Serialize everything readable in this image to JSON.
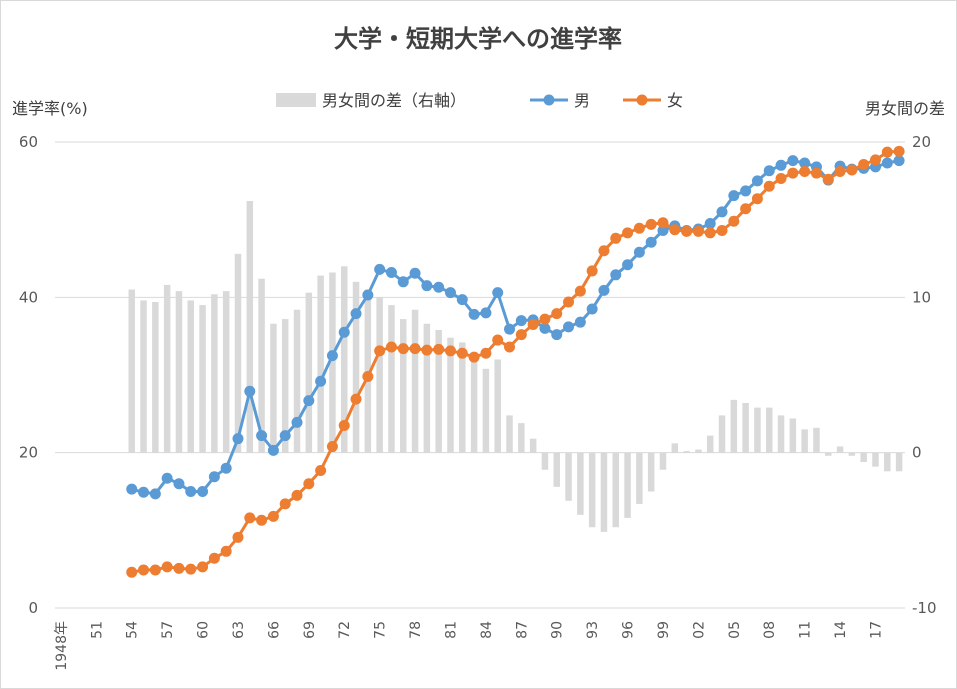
{
  "chart_data": {
    "type": "bar+line",
    "title": "大学・短期大学への進学率",
    "y_left_label": "進学率(%)",
    "y_right_label": "男女間の差",
    "y_left_range": [
      0,
      60
    ],
    "y_right_range": [
      -10,
      20
    ],
    "y_left_ticks": [
      "0",
      "20",
      "40",
      "60"
    ],
    "y_right_ticks": [
      "-10",
      "0",
      "10",
      "20"
    ],
    "x_range": [
      1948,
      2019
    ],
    "x_tick_labels": [
      {
        "year": 1948,
        "label": "1948年"
      },
      {
        "year": 1951,
        "label": "51"
      },
      {
        "year": 1954,
        "label": "54"
      },
      {
        "year": 1957,
        "label": "57"
      },
      {
        "year": 1960,
        "label": "60"
      },
      {
        "year": 1963,
        "label": "63"
      },
      {
        "year": 1966,
        "label": "66"
      },
      {
        "year": 1969,
        "label": "69"
      },
      {
        "year": 1972,
        "label": "72"
      },
      {
        "year": 1975,
        "label": "75"
      },
      {
        "year": 1978,
        "label": "78"
      },
      {
        "year": 1981,
        "label": "81"
      },
      {
        "year": 1984,
        "label": "84"
      },
      {
        "year": 1987,
        "label": "87"
      },
      {
        "year": 1990,
        "label": "90"
      },
      {
        "year": 1993,
        "label": "93"
      },
      {
        "year": 1996,
        "label": "96"
      },
      {
        "year": 1999,
        "label": "99"
      },
      {
        "year": 2002,
        "label": "02"
      },
      {
        "year": 2005,
        "label": "05"
      },
      {
        "year": 2008,
        "label": "08"
      },
      {
        "year": 2011,
        "label": "11"
      },
      {
        "year": 2014,
        "label": "14"
      },
      {
        "year": 2017,
        "label": "17"
      }
    ],
    "grid": true,
    "legend": {
      "placement": "top"
    },
    "years": [
      1954,
      1955,
      1956,
      1957,
      1958,
      1959,
      1960,
      1961,
      1962,
      1963,
      1964,
      1965,
      1966,
      1967,
      1968,
      1969,
      1970,
      1971,
      1972,
      1973,
      1974,
      1975,
      1976,
      1977,
      1978,
      1979,
      1980,
      1981,
      1982,
      1983,
      1984,
      1985,
      1986,
      1987,
      1988,
      1989,
      1990,
      1991,
      1992,
      1993,
      1994,
      1995,
      1996,
      1997,
      1998,
      1999,
      2000,
      2001,
      2002,
      2003,
      2004,
      2005,
      2006,
      2007,
      2008,
      2009,
      2010,
      2011,
      2012,
      2013,
      2014,
      2015,
      2016,
      2017,
      2018,
      2019
    ],
    "series": [
      {
        "name": "男女間の差（右軸）",
        "kind": "bar",
        "axis": "right",
        "color": "#d9d9d9",
        "values": [
          10.5,
          9.8,
          9.7,
          10.8,
          10.4,
          9.8,
          9.5,
          10.2,
          10.4,
          12.8,
          16.2,
          11.2,
          8.3,
          8.6,
          9.2,
          10.3,
          11.4,
          11.6,
          12.0,
          11.0,
          10.5,
          10.0,
          9.5,
          8.6,
          9.2,
          8.3,
          7.9,
          7.4,
          7.1,
          6.4,
          5.4,
          6.0,
          2.4,
          1.9,
          0.9,
          -1.1,
          -2.2,
          -3.1,
          -4.0,
          -4.8,
          -5.1,
          -4.8,
          -4.2,
          -3.3,
          -2.5,
          -1.1,
          0.6,
          0.1,
          0.2,
          1.1,
          2.4,
          3.4,
          3.2,
          2.9,
          2.9,
          2.4,
          2.2,
          1.5,
          1.6,
          -0.2,
          0.4,
          -0.2,
          -0.6,
          -0.9,
          -1.2,
          -1.2
        ]
      },
      {
        "name": "男",
        "kind": "line",
        "axis": "left",
        "color": "#5b9bd5",
        "values": [
          15.3,
          14.9,
          14.7,
          16.7,
          16.0,
          15.0,
          15.0,
          16.9,
          18.0,
          21.8,
          27.9,
          22.2,
          20.3,
          22.2,
          23.9,
          26.7,
          29.2,
          32.5,
          35.5,
          37.9,
          40.3,
          43.6,
          43.2,
          42.0,
          43.1,
          41.5,
          41.3,
          40.6,
          39.7,
          37.8,
          38.0,
          40.6,
          35.9,
          37.0,
          37.1,
          36.0,
          35.2,
          36.2,
          36.8,
          38.5,
          40.9,
          42.9,
          44.2,
          45.8,
          47.1,
          48.6,
          49.2,
          48.6,
          48.8,
          49.5,
          51.0,
          53.1,
          53.7,
          55.0,
          56.3,
          57.0,
          57.6,
          57.3,
          56.8,
          55.1,
          56.9,
          56.5,
          56.6,
          56.8,
          57.3,
          57.6
        ]
      },
      {
        "name": "女",
        "kind": "line",
        "axis": "left",
        "color": "#ed7d31",
        "values": [
          4.6,
          4.9,
          4.9,
          5.3,
          5.1,
          5.0,
          5.3,
          6.4,
          7.3,
          9.1,
          11.6,
          11.3,
          11.8,
          13.4,
          14.5,
          16.0,
          17.7,
          20.8,
          23.5,
          26.9,
          29.8,
          33.1,
          33.6,
          33.4,
          33.4,
          33.2,
          33.3,
          33.1,
          32.8,
          32.3,
          32.8,
          34.5,
          33.6,
          35.2,
          36.5,
          37.2,
          37.9,
          39.4,
          40.8,
          43.4,
          46.0,
          47.6,
          48.3,
          48.9,
          49.4,
          49.6,
          48.7,
          48.5,
          48.5,
          48.3,
          48.6,
          49.8,
          51.4,
          52.7,
          54.3,
          55.3,
          56.0,
          56.2,
          56.0,
          55.2,
          56.2,
          56.4,
          57.1,
          57.7,
          58.7,
          58.8
        ]
      }
    ]
  }
}
